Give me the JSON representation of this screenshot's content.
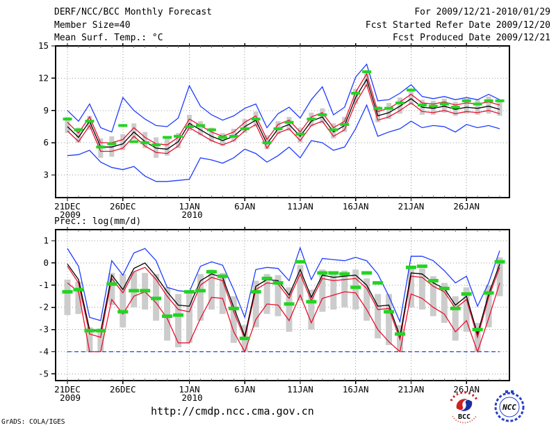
{
  "header": {
    "title": "DERF/NCC/BCC Monthly Forecast",
    "member_size": "Member Size=40",
    "for_range": "For 2009/12/21-2010/01/29",
    "fcst_started": "Fcst Started Refer Date 2009/12/20",
    "fcst_produced": "Fcst Produced Date 2009/12/21"
  },
  "footer": {
    "url": "http://cmdp.ncc.cma.gov.cn",
    "grads_credit": "GrADS: COLA/IGES",
    "logos": [
      {
        "label": "BCC",
        "name": "Beijing Climate Center logo",
        "colors": [
          "#cc2222",
          "#1a2f9f"
        ]
      },
      {
        "label": "NCC",
        "name": "National Climate Center logo",
        "colors": [
          "#2840c8"
        ]
      }
    ]
  },
  "colors": {
    "background": "#ffffff",
    "frame": "#000000",
    "grid": "#999999",
    "ensemble_bar_gray": "#cccccc",
    "obs_green": "#22d422",
    "mean_black": "#000000",
    "std_red": "#e8102e",
    "extreme_blue": "#1e3cff"
  },
  "chart_data": [
    {
      "type": "line",
      "name": "mean-surface-temperature",
      "title": "Mean Surf. Temp.: °C",
      "xlabel": "",
      "ylabel": "",
      "ylim": [
        0.9,
        15
      ],
      "yticks": [
        3,
        6,
        9,
        12,
        15
      ],
      "grid": true,
      "legend": "none",
      "xticks": [
        {
          "day": 0,
          "label": "21DEC",
          "sublabel": "2009"
        },
        {
          "day": 5,
          "label": "26DEC",
          "sublabel": ""
        },
        {
          "day": 11,
          "label": "1JAN",
          "sublabel": "2010"
        },
        {
          "day": 16,
          "label": "6JAN",
          "sublabel": ""
        },
        {
          "day": 21,
          "label": "11JAN",
          "sublabel": ""
        },
        {
          "day": 26,
          "label": "16JAN",
          "sublabel": ""
        },
        {
          "day": 31,
          "label": "21JAN",
          "sublabel": ""
        },
        {
          "day": 36,
          "label": "26JAN",
          "sublabel": ""
        }
      ],
      "categories": [
        "21DEC2009",
        "22DEC2009",
        "23DEC2009",
        "24DEC2009",
        "25DEC2009",
        "26DEC2009",
        "27DEC2009",
        "28DEC2009",
        "29DEC2009",
        "30DEC2009",
        "31DEC2009",
        "1JAN2010",
        "2JAN2010",
        "3JAN2010",
        "4JAN2010",
        "5JAN2010",
        "6JAN2010",
        "7JAN2010",
        "8JAN2010",
        "9JAN2010",
        "10JAN2010",
        "11JAN2010",
        "12JAN2010",
        "13JAN2010",
        "14JAN2010",
        "15JAN2010",
        "16JAN2010",
        "17JAN2010",
        "18JAN2010",
        "19JAN2010",
        "20JAN2010",
        "21JAN2010",
        "22JAN2010",
        "23JAN2010",
        "24JAN2010",
        "25JAN2010",
        "26JAN2010",
        "27JAN2010",
        "28JAN2010",
        "29JAN2010"
      ],
      "series": [
        {
          "name": "ensemble-max-blue",
          "color": "#1e3cff",
          "dashed": false,
          "width": 1.3,
          "values": [
            9.0,
            8.0,
            9.6,
            7.4,
            7.0,
            10.2,
            9.0,
            8.2,
            7.6,
            7.5,
            8.3,
            11.3,
            9.4,
            8.6,
            8.1,
            8.5,
            9.2,
            9.6,
            7.4,
            8.7,
            9.3,
            8.3,
            10.0,
            11.2,
            8.6,
            9.3,
            12.1,
            13.3,
            9.9,
            10.0,
            10.6,
            11.4,
            10.3,
            10.1,
            10.3,
            10.0,
            10.2,
            10.0,
            10.5,
            10.0
          ]
        },
        {
          "name": "ensemble-min-blue",
          "color": "#1e3cff",
          "dashed": false,
          "width": 1.3,
          "values": [
            4.8,
            4.9,
            5.3,
            4.2,
            3.7,
            3.5,
            3.8,
            2.9,
            2.4,
            2.4,
            2.5,
            2.6,
            4.6,
            4.4,
            4.1,
            4.6,
            5.4,
            5.0,
            4.2,
            4.8,
            5.6,
            4.6,
            6.2,
            6.0,
            5.3,
            5.6,
            7.3,
            9.5,
            6.6,
            7.0,
            7.3,
            8.0,
            7.4,
            7.6,
            7.5,
            7.0,
            7.7,
            7.4,
            7.6,
            7.3
          ]
        },
        {
          "name": "upper-spread-red",
          "color": "#e8102e",
          "dashed": false,
          "width": 1.3,
          "values": [
            7.9,
            6.9,
            8.4,
            6.0,
            6.0,
            6.3,
            7.4,
            6.5,
            5.9,
            5.8,
            6.5,
            8.2,
            7.6,
            7.0,
            6.6,
            7.0,
            7.9,
            8.5,
            6.3,
            7.7,
            8.1,
            7.0,
            8.4,
            8.8,
            7.4,
            8.0,
            10.7,
            12.4,
            8.9,
            9.2,
            9.8,
            10.5,
            9.7,
            9.6,
            9.8,
            9.5,
            9.7,
            9.6,
            9.8,
            9.5
          ]
        },
        {
          "name": "lower-spread-red",
          "color": "#e8102e",
          "dashed": false,
          "width": 1.3,
          "values": [
            7.1,
            6.1,
            7.6,
            5.2,
            5.2,
            5.5,
            6.6,
            5.7,
            5.1,
            5.0,
            5.7,
            7.4,
            6.8,
            6.2,
            5.8,
            6.2,
            7.1,
            7.7,
            5.5,
            6.9,
            7.3,
            6.2,
            7.6,
            8.0,
            6.6,
            7.2,
            9.7,
            11.4,
            8.1,
            8.4,
            9.0,
            9.7,
            8.9,
            8.8,
            9.0,
            8.7,
            8.9,
            8.8,
            9.0,
            8.7
          ]
        },
        {
          "name": "ensemble-mean-black",
          "color": "#000000",
          "dashed": false,
          "width": 1.3,
          "values": [
            7.5,
            6.5,
            8.0,
            5.6,
            5.6,
            5.9,
            7.0,
            6.1,
            5.5,
            5.4,
            6.1,
            7.8,
            7.2,
            6.6,
            6.2,
            6.6,
            7.5,
            8.1,
            5.9,
            7.3,
            7.7,
            6.6,
            8.0,
            8.4,
            7.0,
            7.6,
            10.2,
            11.9,
            8.5,
            8.8,
            9.4,
            10.1,
            9.3,
            9.2,
            9.4,
            9.1,
            9.3,
            9.2,
            9.4,
            9.1
          ]
        }
      ],
      "green_dashes": {
        "name": "observation-green-dash",
        "color": "#22d422",
        "values": [
          8.2,
          7.2,
          8.0,
          5.6,
          5.9,
          7.6,
          6.1,
          6.0,
          5.8,
          6.5,
          6.6,
          7.5,
          7.6,
          7.2,
          6.5,
          6.6,
          7.3,
          8.2,
          6.0,
          7.3,
          7.9,
          6.8,
          8.2,
          8.6,
          7.2,
          7.7,
          10.6,
          12.6,
          9.2,
          9.2,
          9.7,
          10.9,
          9.5,
          9.4,
          9.6,
          9.3,
          9.9,
          9.6,
          9.9,
          9.9
        ]
      },
      "gray_bars": {
        "name": "ensemble-spread-bar",
        "color": "#cccccc",
        "lo": [
          6.9,
          6.0,
          7.2,
          4.6,
          4.7,
          5.3,
          6.3,
          5.5,
          4.6,
          4.8,
          5.5,
          7.1,
          6.7,
          6.1,
          5.7,
          6.1,
          6.9,
          7.5,
          5.4,
          6.8,
          7.1,
          6.0,
          7.5,
          7.8,
          6.4,
          7.0,
          9.6,
          11.2,
          7.9,
          8.2,
          8.7,
          9.5,
          8.6,
          8.6,
          8.8,
          8.5,
          8.7,
          8.6,
          8.7,
          8.5
        ],
        "hi": [
          8.4,
          7.4,
          8.5,
          6.4,
          6.6,
          6.8,
          7.8,
          7.0,
          6.5,
          6.6,
          6.9,
          8.6,
          8.0,
          7.4,
          6.9,
          7.3,
          8.2,
          8.9,
          6.7,
          8.0,
          8.4,
          7.4,
          8.8,
          9.2,
          7.8,
          8.4,
          11.0,
          12.7,
          9.4,
          9.7,
          10.2,
          10.9,
          10.0,
          9.9,
          10.1,
          9.8,
          10.1,
          10.0,
          10.3,
          9.9
        ]
      }
    },
    {
      "type": "line",
      "name": "precipitation-log",
      "title": "Prec.: log(mm/d)",
      "xlabel": "",
      "ylabel": "",
      "ylim": [
        -5.3,
        1.5
      ],
      "yticks": [
        -5,
        -4,
        -3,
        -2,
        -1,
        0,
        1
      ],
      "grid": true,
      "legend": "none",
      "xticks": [
        {
          "day": 0,
          "label": "21DEC",
          "sublabel": "2009"
        },
        {
          "day": 5,
          "label": "26DEC",
          "sublabel": ""
        },
        {
          "day": 11,
          "label": "1JAN",
          "sublabel": "2010"
        },
        {
          "day": 16,
          "label": "6JAN",
          "sublabel": ""
        },
        {
          "day": 21,
          "label": "11JAN",
          "sublabel": ""
        },
        {
          "day": 26,
          "label": "16JAN",
          "sublabel": ""
        },
        {
          "day": 31,
          "label": "21JAN",
          "sublabel": ""
        },
        {
          "day": 36,
          "label": "26JAN",
          "sublabel": ""
        }
      ],
      "categories": [
        "21DEC2009",
        "22DEC2009",
        "23DEC2009",
        "24DEC2009",
        "25DEC2009",
        "26DEC2009",
        "27DEC2009",
        "28DEC2009",
        "29DEC2009",
        "30DEC2009",
        "31DEC2009",
        "1JAN2010",
        "2JAN2010",
        "3JAN2010",
        "4JAN2010",
        "5JAN2010",
        "6JAN2010",
        "7JAN2010",
        "8JAN2010",
        "9JAN2010",
        "10JAN2010",
        "11JAN2010",
        "12JAN2010",
        "13JAN2010",
        "14JAN2010",
        "15JAN2010",
        "16JAN2010",
        "17JAN2010",
        "18JAN2010",
        "19JAN2010",
        "20JAN2010",
        "21JAN2010",
        "22JAN2010",
        "23JAN2010",
        "24JAN2010",
        "25JAN2010",
        "26JAN2010",
        "27JAN2010",
        "28JAN2010",
        "29JAN2010"
      ],
      "series": [
        {
          "name": "ensemble-max-blue",
          "color": "#1e3cff",
          "dashed": false,
          "width": 1.3,
          "values": [
            0.65,
            -0.15,
            -2.45,
            -2.6,
            0.1,
            -0.55,
            0.45,
            0.65,
            0.1,
            -1.1,
            -1.25,
            -1.3,
            -0.15,
            0.05,
            -0.1,
            -1.2,
            -2.45,
            -0.3,
            -0.2,
            -0.25,
            -0.8,
            0.68,
            -0.75,
            0.2,
            0.15,
            0.1,
            0.25,
            0.1,
            -0.5,
            -1.5,
            -2.65,
            0.3,
            0.3,
            0.1,
            -0.35,
            -0.9,
            -0.6,
            -1.95,
            -0.9,
            0.55
          ]
        },
        {
          "name": "ensemble-min-blue",
          "color": "#1e3cff",
          "dashed": true,
          "width": 1.3,
          "values": [
            -4.0,
            -4.0,
            -4.0,
            -4.0,
            -4.0,
            -4.0,
            -4.0,
            -4.0,
            -4.0,
            -4.0,
            -4.0,
            -4.0,
            -4.0,
            -4.0,
            -4.0,
            -4.0,
            -4.0,
            -4.0,
            -4.0,
            -4.0,
            -4.0,
            -4.0,
            -4.0,
            -4.0,
            -4.0,
            -4.0,
            -4.0,
            -4.0,
            -4.0,
            -4.0,
            -4.0,
            -4.0,
            -4.0,
            -4.0,
            -4.0,
            -4.0,
            -4.0,
            -4.0,
            -4.0,
            -4.0
          ]
        },
        {
          "name": "upper-spread-red",
          "color": "#e8102e",
          "dashed": false,
          "width": 1.3,
          "values": [
            -0.15,
            -0.9,
            -3.2,
            -3.35,
            -0.7,
            -1.35,
            -0.4,
            -0.2,
            -0.75,
            -1.5,
            -2.1,
            -2.2,
            -1.0,
            -0.65,
            -0.8,
            -2.2,
            -3.4,
            -1.2,
            -0.9,
            -0.95,
            -1.6,
            -0.5,
            -1.7,
            -0.7,
            -0.8,
            -0.75,
            -0.7,
            -1.15,
            -2.1,
            -2.05,
            -3.45,
            -0.6,
            -0.65,
            -1.05,
            -1.3,
            -2.05,
            -1.65,
            -3.35,
            -1.55,
            -0.2
          ]
        },
        {
          "name": "lower-spread-red",
          "color": "#e8102e",
          "dashed": false,
          "width": 1.3,
          "values": [
            -0.9,
            -1.3,
            -4.0,
            -4.0,
            -1.65,
            -2.3,
            -1.5,
            -1.3,
            -1.8,
            -2.5,
            -3.6,
            -3.6,
            -2.5,
            -1.55,
            -1.6,
            -3.1,
            -4.0,
            -2.55,
            -1.85,
            -1.9,
            -2.6,
            -1.45,
            -2.7,
            -1.6,
            -1.45,
            -1.3,
            -1.35,
            -2.1,
            -3.0,
            -3.55,
            -4.0,
            -1.4,
            -1.6,
            -2.0,
            -2.3,
            -3.1,
            -2.6,
            -4.0,
            -2.5,
            -0.9
          ]
        },
        {
          "name": "ensemble-mean-black",
          "color": "#000000",
          "dashed": false,
          "width": 1.3,
          "values": [
            -0.05,
            -0.75,
            -3.0,
            -3.1,
            -0.55,
            -1.2,
            -0.25,
            0.0,
            -0.6,
            -1.3,
            -1.9,
            -1.95,
            -0.8,
            -0.5,
            -0.65,
            -2.0,
            -3.3,
            -1.05,
            -0.75,
            -0.8,
            -1.45,
            -0.3,
            -1.55,
            -0.55,
            -0.65,
            -0.6,
            -0.55,
            -1.0,
            -1.95,
            -1.9,
            -3.3,
            -0.45,
            -0.5,
            -0.9,
            -1.15,
            -1.9,
            -1.5,
            -3.2,
            -1.4,
            -0.05
          ]
        }
      ],
      "green_dashes": {
        "name": "observation-green-dash",
        "color": "#22d422",
        "values": [
          -1.3,
          -1.2,
          -3.05,
          -3.05,
          -0.95,
          -2.2,
          -1.25,
          -1.25,
          -1.6,
          -2.4,
          -2.35,
          -1.3,
          -1.25,
          -0.4,
          -0.6,
          -2.05,
          -3.4,
          -1.3,
          -0.7,
          -0.9,
          -1.85,
          0.05,
          -1.75,
          -0.45,
          -0.45,
          -0.5,
          -1.1,
          -0.45,
          -0.9,
          -2.2,
          -3.2,
          -0.2,
          -0.15,
          -0.8,
          -1.15,
          -2.05,
          -1.4,
          -3.0,
          -1.35,
          0.05
        ]
      },
      "gray_bars": {
        "name": "ensemble-spread-bar",
        "color": "#cccccc",
        "lo": [
          -2.35,
          -2.3,
          -4.0,
          -4.0,
          -1.9,
          -2.9,
          -2.0,
          -2.1,
          -2.6,
          -3.5,
          -3.8,
          -3.6,
          -2.6,
          -2.1,
          -2.3,
          -3.6,
          -4.0,
          -2.9,
          -2.3,
          -2.4,
          -3.1,
          -1.7,
          -3.0,
          -2.2,
          -2.1,
          -2.0,
          -2.1,
          -2.6,
          -3.4,
          -3.7,
          -4.0,
          -2.0,
          -2.1,
          -2.4,
          -2.7,
          -3.5,
          -3.1,
          -4.0,
          -2.9,
          -1.5
        ],
        "hi": [
          -0.75,
          -0.85,
          -2.9,
          -2.95,
          -0.45,
          -0.5,
          -0.4,
          -0.45,
          -0.5,
          -1.1,
          -1.4,
          -1.3,
          -0.5,
          -0.3,
          -0.45,
          -1.5,
          -2.8,
          -0.8,
          -0.5,
          -0.55,
          -1.1,
          -0.1,
          -1.2,
          -0.3,
          -0.4,
          -0.35,
          -0.3,
          -0.7,
          -1.4,
          -1.4,
          -2.8,
          -0.2,
          -0.25,
          -0.6,
          -0.9,
          -1.5,
          -1.1,
          -2.7,
          -1.0,
          0.25
        ]
      }
    }
  ]
}
